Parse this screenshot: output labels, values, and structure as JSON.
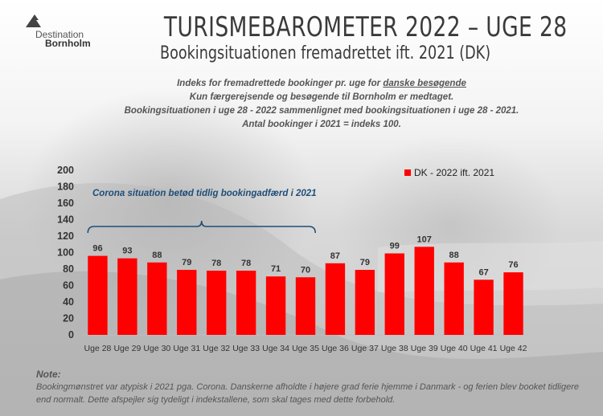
{
  "logo": {
    "line1": "Destination",
    "line2": "Bornholm"
  },
  "header": {
    "title": "TURISMEBAROMETER 2022 – UGE 28",
    "subtitle": "Bookingsituationen fremadrettet ift. 2021 (DK)"
  },
  "description": {
    "line1_prefix": "Indeks for fremadrettede bookinger pr. uge for ",
    "line1_underlined": "danske besøgende",
    "line2": "Kun færgerejsende og besøgende til Bornholm er medtaget.",
    "line3": "Bookingsituationen i uge 28 - 2022 sammenlignet med bookingsituationen i uge 28 - 2021.",
    "line4": "Antal bookinger i 2021 = indeks 100."
  },
  "chart_data": {
    "type": "bar",
    "categories": [
      "Uge 28",
      "Uge 29",
      "Uge 30",
      "Uge 31",
      "Uge 32",
      "Uge 33",
      "Uge 34",
      "Uge 35",
      "Uge 36",
      "Uge 37",
      "Uge 38",
      "Uge 39",
      "Uge 40",
      "Uge 41",
      "Uge 42"
    ],
    "series": [
      {
        "name": "DK - 2022 ift. 2021",
        "values": [
          96,
          93,
          88,
          79,
          78,
          78,
          71,
          70,
          87,
          79,
          99,
          107,
          88,
          67,
          76
        ],
        "color": "#ff0000"
      }
    ],
    "yticks": [
      "0",
      "20",
      "40",
      "60",
      "80",
      "100",
      "120",
      "140",
      "160",
      "180",
      "200"
    ],
    "ylim": [
      0,
      200
    ],
    "grid": false,
    "legend_position": "top-right",
    "annotation": {
      "text": "Corona situation betød tidlig bookingadfærd i 2021",
      "covers_categories": [
        "Uge 28",
        "Uge 35"
      ],
      "color": "#1f4e79"
    }
  },
  "note": {
    "title": "Note:",
    "text": "Bookingmønstret var atypisk i 2021 pga. Corona. Danskerne afholdte i højere grad ferie hjemme i Danmark - og ferien blev booket tidligere end normalt. Dette afspejler sig tydeligt i indekstallene, som skal tages med dette forbehold."
  }
}
